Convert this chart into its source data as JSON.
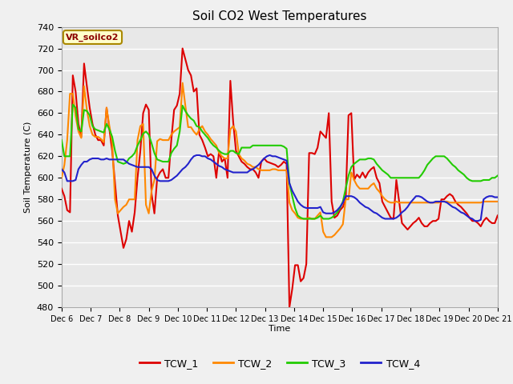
{
  "title": "Soil CO2 West Temperatures",
  "ylabel": "Soil Temperature (C)",
  "xlabel": "Time",
  "annotation": "VR_soilco2",
  "ylim": [
    480,
    740
  ],
  "yticks": [
    480,
    500,
    520,
    540,
    560,
    580,
    600,
    620,
    640,
    660,
    680,
    700,
    720,
    740
  ],
  "xtick_labels": [
    "Dec 6",
    "Dec 7",
    "Dec 8",
    "Dec 9",
    "Dec 10",
    "Dec 11",
    "Dec 12",
    "Dec 13",
    "Dec 14",
    "Dec 15",
    "Dec 16",
    "Dec 17",
    "Dec 18",
    "Dec 19",
    "Dec 20",
    "Dec 21"
  ],
  "colors": {
    "TCW_1": "#dd0000",
    "TCW_2": "#ff8800",
    "TCW_3": "#22cc00",
    "TCW_4": "#2222cc"
  },
  "bg_color": "#e8e8e8",
  "fig_bg": "#f0f0f0",
  "grid_color": "#ffffff",
  "linewidth": 1.5,
  "TCW_1": [
    590,
    583,
    570,
    568,
    695,
    680,
    650,
    638,
    706,
    685,
    665,
    650,
    640,
    635,
    635,
    630,
    665,
    645,
    625,
    595,
    565,
    550,
    535,
    543,
    560,
    550,
    568,
    600,
    625,
    660,
    668,
    663,
    585,
    567,
    600,
    605,
    608,
    600,
    600,
    635,
    663,
    667,
    678,
    720,
    710,
    700,
    695,
    680,
    683,
    640,
    635,
    628,
    620,
    622,
    620,
    600,
    625,
    615,
    618,
    600,
    690,
    652,
    625,
    620,
    615,
    613,
    610,
    608,
    608,
    605,
    600,
    615,
    618,
    615,
    614,
    613,
    612,
    610,
    612,
    615,
    613,
    480,
    497,
    519,
    519,
    504,
    507,
    520,
    623,
    623,
    622,
    628,
    643,
    640,
    637,
    660,
    578,
    563,
    565,
    570,
    573,
    580,
    658,
    660,
    598,
    603,
    600,
    605,
    600,
    605,
    608,
    610,
    600,
    595,
    578,
    573,
    568,
    563,
    562,
    598,
    578,
    558,
    555,
    552,
    555,
    558,
    560,
    563,
    558,
    555,
    555,
    558,
    560,
    560,
    562,
    580,
    580,
    583,
    585,
    583,
    578,
    575,
    573,
    570,
    567,
    563,
    560,
    560,
    558,
    555,
    560,
    563,
    560,
    558,
    558,
    565
  ],
  "TCW_2": [
    600,
    612,
    635,
    678,
    678,
    657,
    643,
    637,
    685,
    663,
    648,
    640,
    638,
    638,
    636,
    633,
    665,
    648,
    633,
    580,
    567,
    570,
    573,
    575,
    580,
    580,
    580,
    635,
    648,
    650,
    575,
    567,
    588,
    598,
    634,
    636,
    635,
    635,
    635,
    640,
    643,
    645,
    647,
    688,
    667,
    647,
    647,
    643,
    640,
    645,
    648,
    643,
    640,
    636,
    633,
    630,
    623,
    620,
    618,
    618,
    645,
    648,
    643,
    622,
    618,
    616,
    613,
    612,
    610,
    610,
    608,
    607,
    607,
    607,
    607,
    608,
    608,
    607,
    607,
    607,
    607,
    577,
    570,
    567,
    563,
    562,
    562,
    562,
    563,
    562,
    562,
    565,
    568,
    550,
    545,
    545,
    545,
    547,
    550,
    553,
    557,
    580,
    580,
    605,
    598,
    593,
    590,
    590,
    590,
    590,
    593,
    595,
    590,
    587,
    583,
    580,
    578,
    577,
    577,
    578,
    577,
    577,
    577,
    577,
    577,
    577,
    577,
    577,
    577,
    577,
    577,
    577,
    577,
    577,
    577,
    578,
    578,
    578,
    577,
    577,
    577,
    577,
    577,
    577,
    577,
    577,
    577,
    577,
    577,
    577,
    578,
    578,
    578,
    578,
    578,
    578
  ],
  "TCW_3": [
    635,
    620,
    620,
    620,
    668,
    665,
    645,
    643,
    663,
    662,
    658,
    648,
    645,
    644,
    643,
    642,
    650,
    645,
    638,
    625,
    615,
    614,
    613,
    614,
    618,
    620,
    623,
    630,
    635,
    641,
    643,
    640,
    632,
    623,
    617,
    616,
    615,
    615,
    615,
    623,
    627,
    630,
    643,
    667,
    662,
    658,
    655,
    653,
    648,
    647,
    643,
    640,
    637,
    633,
    630,
    628,
    625,
    623,
    622,
    622,
    625,
    625,
    623,
    622,
    628,
    628,
    628,
    628,
    630,
    630,
    630,
    630,
    630,
    630,
    630,
    630,
    630,
    630,
    630,
    629,
    627,
    595,
    583,
    572,
    565,
    563,
    562,
    562,
    562,
    562,
    562,
    563,
    565,
    562,
    562,
    562,
    563,
    565,
    568,
    572,
    578,
    590,
    602,
    610,
    613,
    615,
    617,
    617,
    617,
    618,
    618,
    617,
    613,
    610,
    607,
    605,
    603,
    600,
    600,
    600,
    600,
    600,
    600,
    600,
    600,
    600,
    600,
    600,
    603,
    607,
    612,
    615,
    618,
    620,
    620,
    620,
    620,
    618,
    615,
    612,
    610,
    607,
    605,
    603,
    600,
    598,
    597,
    597,
    597,
    597,
    598,
    598,
    598,
    600,
    600,
    602
  ],
  "TCW_4": [
    608,
    605,
    597,
    597,
    597,
    598,
    608,
    612,
    615,
    615,
    617,
    618,
    618,
    618,
    617,
    617,
    618,
    617,
    617,
    617,
    617,
    617,
    617,
    615,
    613,
    612,
    611,
    610,
    610,
    610,
    610,
    610,
    608,
    602,
    598,
    597,
    597,
    597,
    597,
    598,
    600,
    602,
    605,
    608,
    610,
    613,
    617,
    620,
    621,
    621,
    620,
    620,
    618,
    617,
    615,
    613,
    611,
    610,
    608,
    607,
    606,
    605,
    605,
    605,
    605,
    605,
    605,
    607,
    608,
    610,
    612,
    615,
    618,
    620,
    621,
    620,
    620,
    619,
    618,
    617,
    616,
    595,
    588,
    583,
    578,
    575,
    573,
    572,
    572,
    572,
    572,
    572,
    573,
    568,
    567,
    567,
    567,
    568,
    570,
    573,
    577,
    583,
    583,
    583,
    582,
    580,
    577,
    575,
    573,
    572,
    570,
    568,
    567,
    565,
    563,
    562,
    562,
    562,
    562,
    563,
    565,
    568,
    570,
    573,
    577,
    580,
    583,
    583,
    582,
    580,
    578,
    577,
    577,
    578,
    578,
    578,
    578,
    577,
    575,
    573,
    572,
    570,
    568,
    567,
    565,
    563,
    562,
    560,
    560,
    561,
    580,
    582,
    583,
    583,
    582,
    582
  ]
}
